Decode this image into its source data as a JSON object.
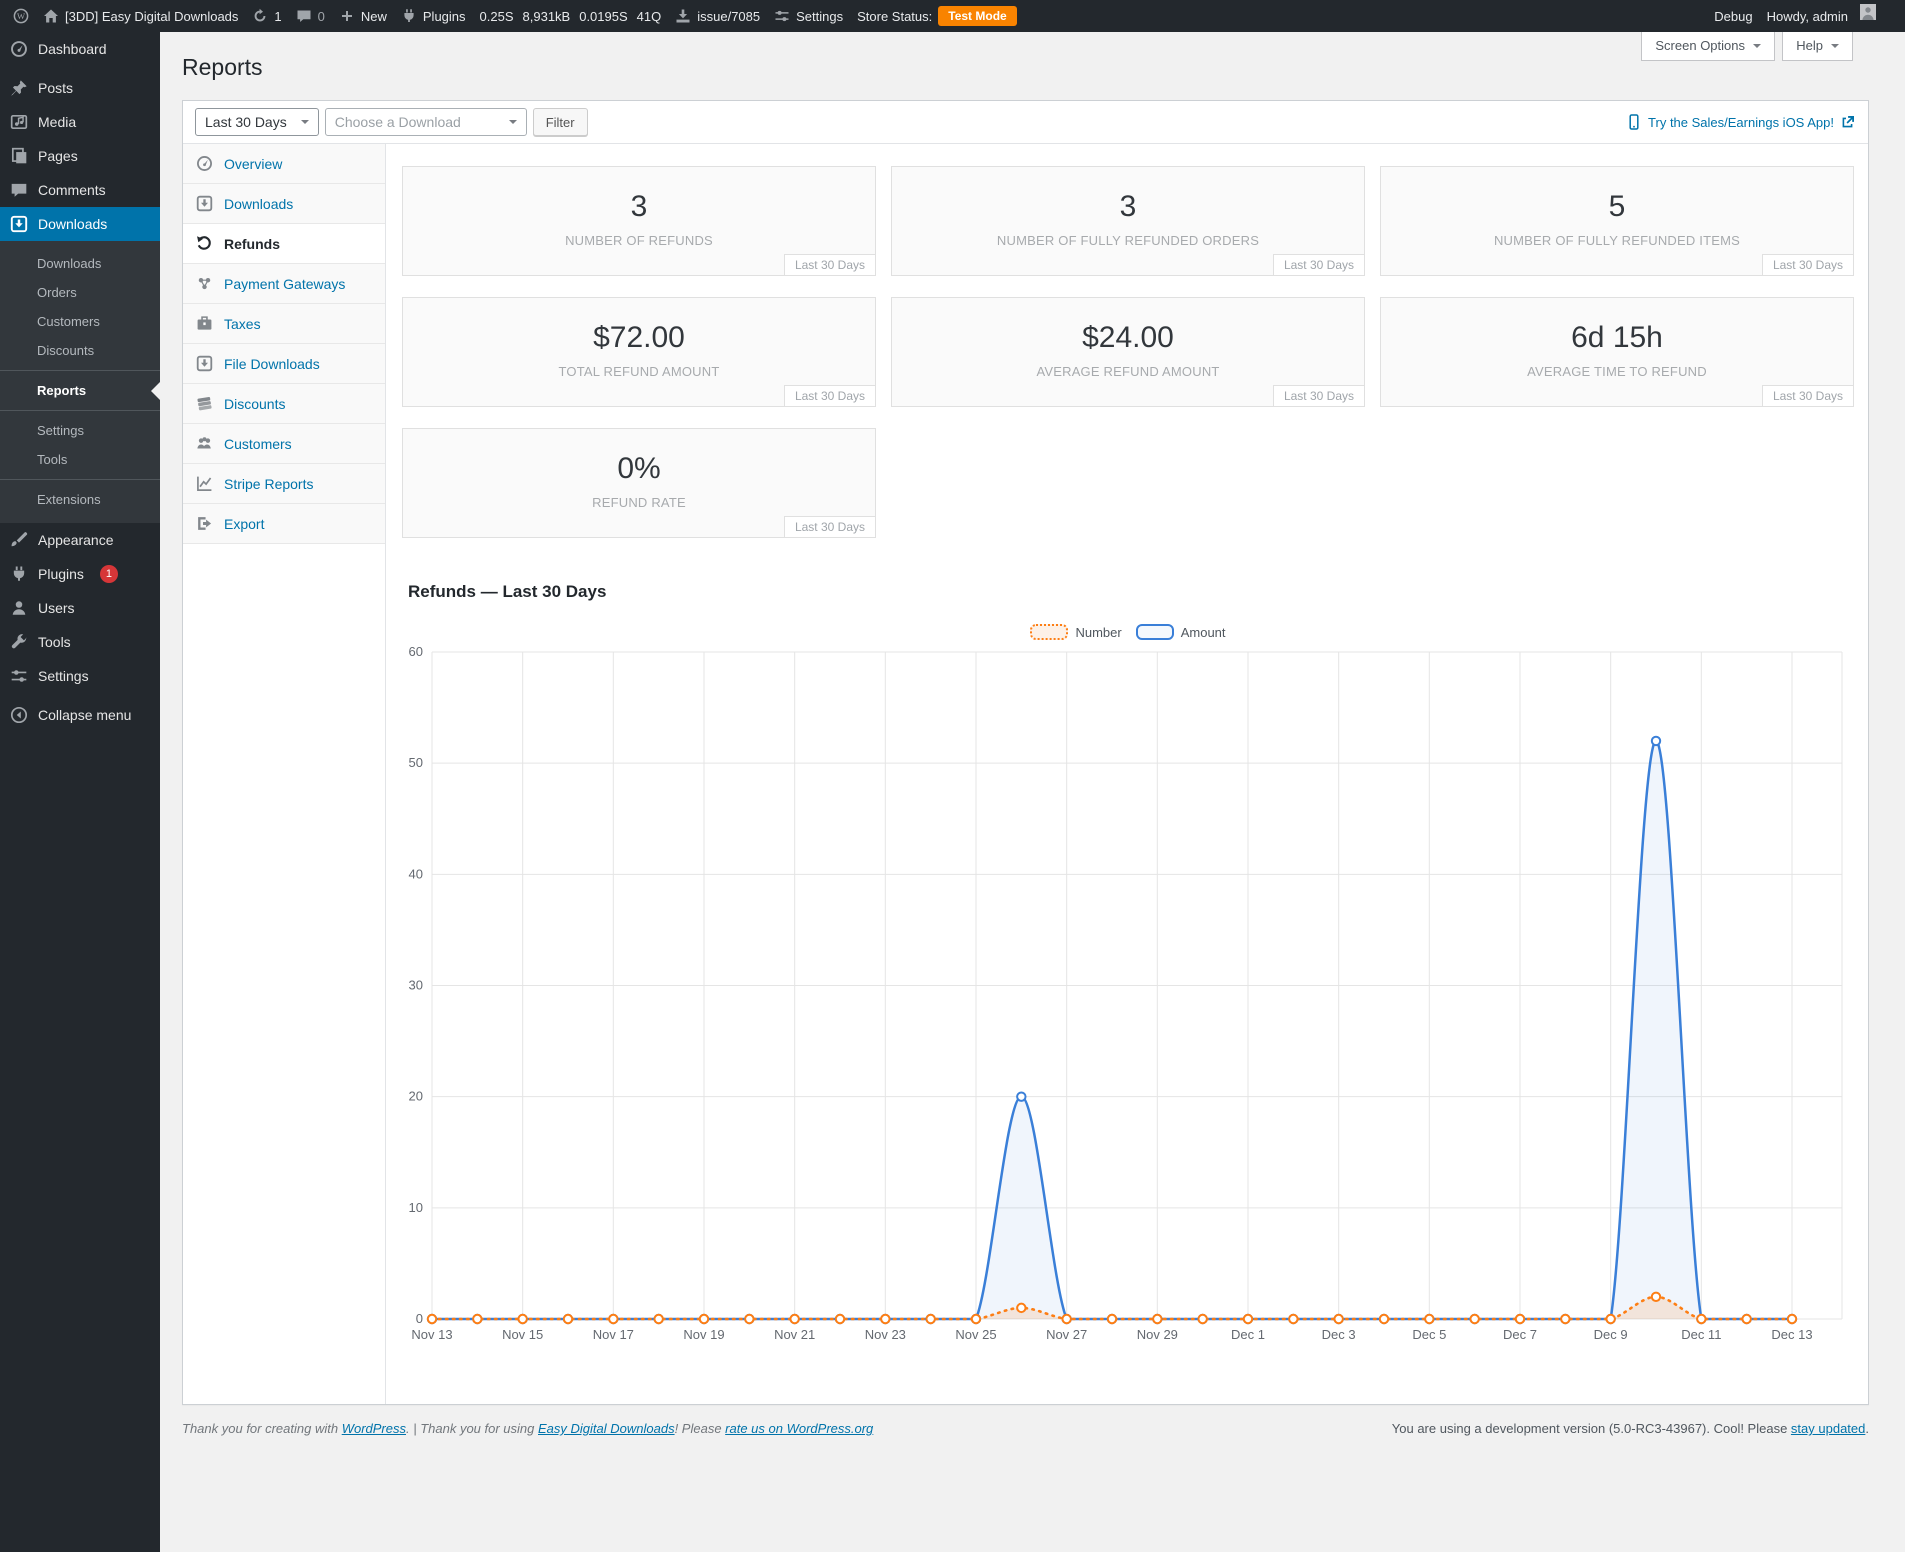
{
  "admin_bar": {
    "site_name": "[3DD] Easy Digital Downloads",
    "updates_count": "1",
    "comments_count": "0",
    "new_label": "New",
    "plugins_label": "Plugins",
    "qm_time": "0.25S",
    "qm_memory": "8,931kB",
    "qm_db_time": "0.0195S",
    "qm_queries": "41Q",
    "issue_label": "issue/7085",
    "settings_label": "Settings",
    "store_status_label": "Store Status:",
    "store_status_badge": "Test Mode",
    "debug_label": "Debug",
    "howdy": "Howdy, admin"
  },
  "sidebar": {
    "menu": [
      {
        "label": "Dashboard",
        "icon": "gauge-icon",
        "sep_after": true
      },
      {
        "label": "Posts",
        "icon": "pin-icon"
      },
      {
        "label": "Media",
        "icon": "media-icon"
      },
      {
        "label": "Pages",
        "icon": "pages-icon"
      },
      {
        "label": "Comments",
        "icon": "comment-icon"
      },
      {
        "label": "Downloads",
        "icon": "download-icon",
        "active": true,
        "submenu": [
          {
            "label": "Downloads"
          },
          {
            "label": "Orders"
          },
          {
            "label": "Customers"
          },
          {
            "label": "Discounts"
          },
          {
            "label": "Reports",
            "current": true,
            "sep_before": true
          },
          {
            "label": "Settings",
            "sep_before": true
          },
          {
            "label": "Tools"
          },
          {
            "label": "Extensions",
            "sep_before": true
          }
        ]
      },
      {
        "label": "Appearance",
        "icon": "brush-icon"
      },
      {
        "label": "Plugins",
        "icon": "plugin-icon",
        "badge": "1"
      },
      {
        "label": "Users",
        "icon": "user-icon"
      },
      {
        "label": "Tools",
        "icon": "wrench-icon"
      },
      {
        "label": "Settings",
        "icon": "sliders-icon"
      },
      {
        "label": "Collapse menu",
        "icon": "collapse-icon",
        "sep_before": true
      }
    ]
  },
  "page": {
    "title": "Reports",
    "screen_options_label": "Screen Options",
    "help_label": "Help",
    "filters": {
      "date_range": "Last 30 Days",
      "download_placeholder": "Choose a Download",
      "filter_button": "Filter"
    },
    "ios_link": "Try the Sales/Earnings iOS App!",
    "tabs": [
      {
        "label": "Overview",
        "icon": "gauge-icon"
      },
      {
        "label": "Downloads",
        "icon": "download-icon"
      },
      {
        "label": "Refunds",
        "icon": "undo-icon",
        "active": true
      },
      {
        "label": "Payment Gateways",
        "icon": "network-icon"
      },
      {
        "label": "Taxes",
        "icon": "briefcase-icon"
      },
      {
        "label": "File Downloads",
        "icon": "download-icon"
      },
      {
        "label": "Discounts",
        "icon": "money-stack-icon"
      },
      {
        "label": "Customers",
        "icon": "group-icon"
      },
      {
        "label": "Stripe Reports",
        "icon": "chart-icon"
      },
      {
        "label": "Export",
        "icon": "export-icon"
      }
    ],
    "tiles": [
      {
        "value": "3",
        "label": "NUMBER OF REFUNDS",
        "tag": "Last 30 Days"
      },
      {
        "value": "3",
        "label": "NUMBER OF FULLY REFUNDED ORDERS",
        "tag": "Last 30 Days"
      },
      {
        "value": "5",
        "label": "NUMBER OF FULLY REFUNDED ITEMS",
        "tag": "Last 30 Days"
      },
      {
        "value": "$72.00",
        "label": "TOTAL REFUND AMOUNT",
        "tag": "Last 30 Days"
      },
      {
        "value": "$24.00",
        "label": "AVERAGE REFUND AMOUNT",
        "tag": "Last 30 Days"
      },
      {
        "value": "6d 15h",
        "label": "AVERAGE TIME TO REFUND",
        "tag": "Last 30 Days"
      },
      {
        "value": "0%",
        "label": "REFUND RATE",
        "tag": "Last 30 Days"
      }
    ]
  },
  "chart_data": {
    "type": "line",
    "title": "Refunds — Last 30 Days",
    "x": [
      "Nov 13",
      "Nov 14",
      "Nov 15",
      "Nov 16",
      "Nov 17",
      "Nov 18",
      "Nov 19",
      "Nov 20",
      "Nov 21",
      "Nov 22",
      "Nov 23",
      "Nov 24",
      "Nov 25",
      "Nov 26",
      "Nov 27",
      "Nov 28",
      "Nov 29",
      "Nov 30",
      "Dec 1",
      "Dec 2",
      "Dec 3",
      "Dec 4",
      "Dec 5",
      "Dec 6",
      "Dec 7",
      "Dec 8",
      "Dec 9",
      "Dec 10",
      "Dec 11",
      "Dec 12",
      "Dec 13"
    ],
    "x_tick_labels": [
      "Nov 13",
      "Nov 15",
      "Nov 17",
      "Nov 19",
      "Nov 21",
      "Nov 23",
      "Nov 25",
      "Nov 27",
      "Nov 29",
      "Dec 1",
      "Dec 3",
      "Dec 5",
      "Dec 7",
      "Dec 9",
      "Dec 11",
      "Dec 13"
    ],
    "series": [
      {
        "name": "Number",
        "color": "#fd7e14",
        "fill": "rgba(253,126,20,0.14)",
        "style": "dotted",
        "values": [
          0,
          0,
          0,
          0,
          0,
          0,
          0,
          0,
          0,
          0,
          0,
          0,
          0,
          1,
          0,
          0,
          0,
          0,
          0,
          0,
          0,
          0,
          0,
          0,
          0,
          0,
          0,
          2,
          0,
          0,
          0
        ]
      },
      {
        "name": "Amount",
        "color": "#3a7fd8",
        "fill": "rgba(58,127,216,0.08)",
        "style": "solid",
        "values": [
          0,
          0,
          0,
          0,
          0,
          0,
          0,
          0,
          0,
          0,
          0,
          0,
          0,
          20,
          0,
          0,
          0,
          0,
          0,
          0,
          0,
          0,
          0,
          0,
          0,
          0,
          0,
          52,
          0,
          0,
          0
        ]
      }
    ],
    "ylim": [
      0,
      60
    ],
    "yticks": [
      0,
      10,
      20,
      30,
      40,
      50,
      60
    ],
    "grid": true,
    "legend_position": "top"
  },
  "footer": {
    "left": [
      {
        "text": "Thank you for creating with "
      },
      {
        "text": "WordPress",
        "link": true
      },
      {
        "text": ". | Thank you for using "
      },
      {
        "text": "Easy Digital Downloads",
        "link": true
      },
      {
        "text": "! Please "
      },
      {
        "text": "rate us on WordPress.org",
        "link": true
      }
    ],
    "right": [
      {
        "text": "You are using a development version (5.0-RC3-43967). Cool! Please "
      },
      {
        "text": "stay updated",
        "link": true
      },
      {
        "text": "."
      }
    ]
  }
}
